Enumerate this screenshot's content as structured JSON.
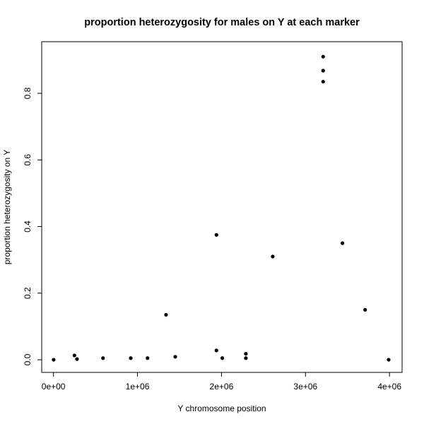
{
  "chart_data": {
    "type": "scatter",
    "title": "proportion heterozygosity for males on Y at each marker",
    "xlabel": "Y chromosome position",
    "ylabel": "proportion heterozygosity on Y",
    "xlim": [
      -140000,
      4150000
    ],
    "ylim": [
      -0.038,
      0.955
    ],
    "x_ticks": [
      {
        "value": 0,
        "label": "0e+00"
      },
      {
        "value": 1000000,
        "label": "1e+06"
      },
      {
        "value": 2000000,
        "label": "2e+06"
      },
      {
        "value": 3000000,
        "label": "3e+06"
      },
      {
        "value": 4000000,
        "label": "4e+06"
      }
    ],
    "y_ticks": [
      {
        "value": 0.0,
        "label": "0.0"
      },
      {
        "value": 0.2,
        "label": "0.2"
      },
      {
        "value": 0.4,
        "label": "0.4"
      },
      {
        "value": 0.6,
        "label": "0.6"
      },
      {
        "value": 0.8,
        "label": "0.8"
      }
    ],
    "grid": false,
    "marker_color": "#000000",
    "points": [
      {
        "x": 2000,
        "y": 0.0
      },
      {
        "x": 250000,
        "y": 0.013
      },
      {
        "x": 280000,
        "y": 0.002
      },
      {
        "x": 590000,
        "y": 0.005
      },
      {
        "x": 920000,
        "y": 0.005
      },
      {
        "x": 1120000,
        "y": 0.005
      },
      {
        "x": 1340000,
        "y": 0.135
      },
      {
        "x": 1450000,
        "y": 0.009
      },
      {
        "x": 1940000,
        "y": 0.375
      },
      {
        "x": 1940000,
        "y": 0.028
      },
      {
        "x": 2010000,
        "y": 0.005
      },
      {
        "x": 2290000,
        "y": 0.018
      },
      {
        "x": 2290000,
        "y": 0.005
      },
      {
        "x": 2610000,
        "y": 0.31
      },
      {
        "x": 3210000,
        "y": 0.91
      },
      {
        "x": 3210000,
        "y": 0.868
      },
      {
        "x": 3210000,
        "y": 0.835
      },
      {
        "x": 3440000,
        "y": 0.35
      },
      {
        "x": 3710000,
        "y": 0.15
      },
      {
        "x": 3990000,
        "y": 0.0
      }
    ]
  }
}
